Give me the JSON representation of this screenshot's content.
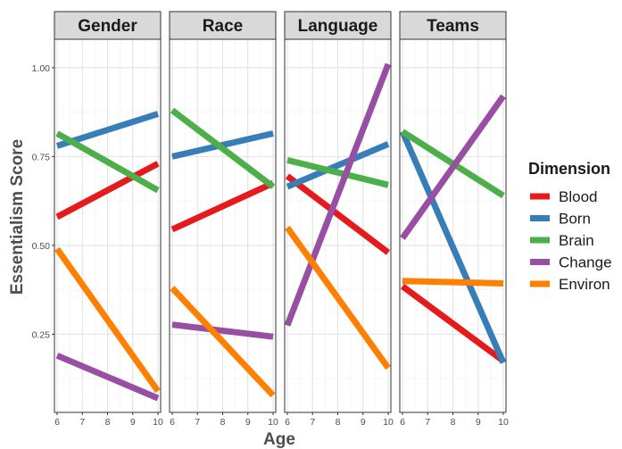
{
  "chart_data": {
    "type": "line",
    "facets": [
      "Gender",
      "Race",
      "Language",
      "Teams"
    ],
    "xlabel": "Age",
    "ylabel": "Essentialism Score",
    "x_ticks": [
      6,
      7,
      8,
      9,
      10
    ],
    "xlim": [
      6,
      10
    ],
    "y_ticks": [
      0.25,
      0.5,
      0.75,
      1.0
    ],
    "y_tick_labels": [
      "0.25",
      "0.50",
      "0.75",
      "1.00"
    ],
    "ylim": [
      0.03,
      1.08
    ],
    "grid": true,
    "legend": {
      "title": "Dimension",
      "position": "right",
      "entries": [
        "Blood",
        "Born",
        "Brain",
        "Change",
        "Environ"
      ]
    },
    "colors": {
      "Blood": "#E41A1C",
      "Born": "#377EB8",
      "Brain": "#4DAF4A",
      "Change": "#984EA3",
      "Environ": "#FF7F00"
    },
    "series": [
      {
        "name": "Blood",
        "facet_values": {
          "Gender": [
            [
              6,
              0.58
            ],
            [
              10,
              0.73
            ]
          ],
          "Race": [
            [
              6,
              0.545
            ],
            [
              10,
              0.675
            ]
          ],
          "Language": [
            [
              6,
              0.695
            ],
            [
              10,
              0.48
            ]
          ],
          "Teams": [
            [
              6,
              0.385
            ],
            [
              10,
              0.175
            ]
          ]
        }
      },
      {
        "name": "Born",
        "facet_values": {
          "Gender": [
            [
              6,
              0.78
            ],
            [
              10,
              0.87
            ]
          ],
          "Race": [
            [
              6,
              0.75
            ],
            [
              10,
              0.815
            ]
          ],
          "Language": [
            [
              6,
              0.665
            ],
            [
              10,
              0.785
            ]
          ],
          "Teams": [
            [
              6,
              0.82
            ],
            [
              10,
              0.17
            ]
          ]
        }
      },
      {
        "name": "Brain",
        "facet_values": {
          "Gender": [
            [
              6,
              0.815
            ],
            [
              10,
              0.655
            ]
          ],
          "Race": [
            [
              6,
              0.88
            ],
            [
              10,
              0.665
            ]
          ],
          "Language": [
            [
              6,
              0.74
            ],
            [
              10,
              0.67
            ]
          ],
          "Teams": [
            [
              6,
              0.82
            ],
            [
              10,
              0.64
            ]
          ]
        }
      },
      {
        "name": "Change",
        "facet_values": {
          "Gender": [
            [
              6,
              0.19
            ],
            [
              10,
              0.07
            ]
          ],
          "Race": [
            [
              6,
              0.277
            ],
            [
              10,
              0.243
            ]
          ],
          "Language": [
            [
              6,
              0.275
            ],
            [
              10,
              1.01
            ]
          ],
          "Teams": [
            [
              6,
              0.52
            ],
            [
              10,
              0.92
            ]
          ]
        }
      },
      {
        "name": "Environ",
        "facet_values": {
          "Gender": [
            [
              6,
              0.49
            ],
            [
              10,
              0.09
            ]
          ],
          "Race": [
            [
              6,
              0.38
            ],
            [
              10,
              0.078
            ]
          ],
          "Language": [
            [
              6,
              0.55
            ],
            [
              10,
              0.155
            ]
          ],
          "Teams": [
            [
              6,
              0.4
            ],
            [
              10,
              0.393
            ]
          ]
        }
      }
    ]
  }
}
